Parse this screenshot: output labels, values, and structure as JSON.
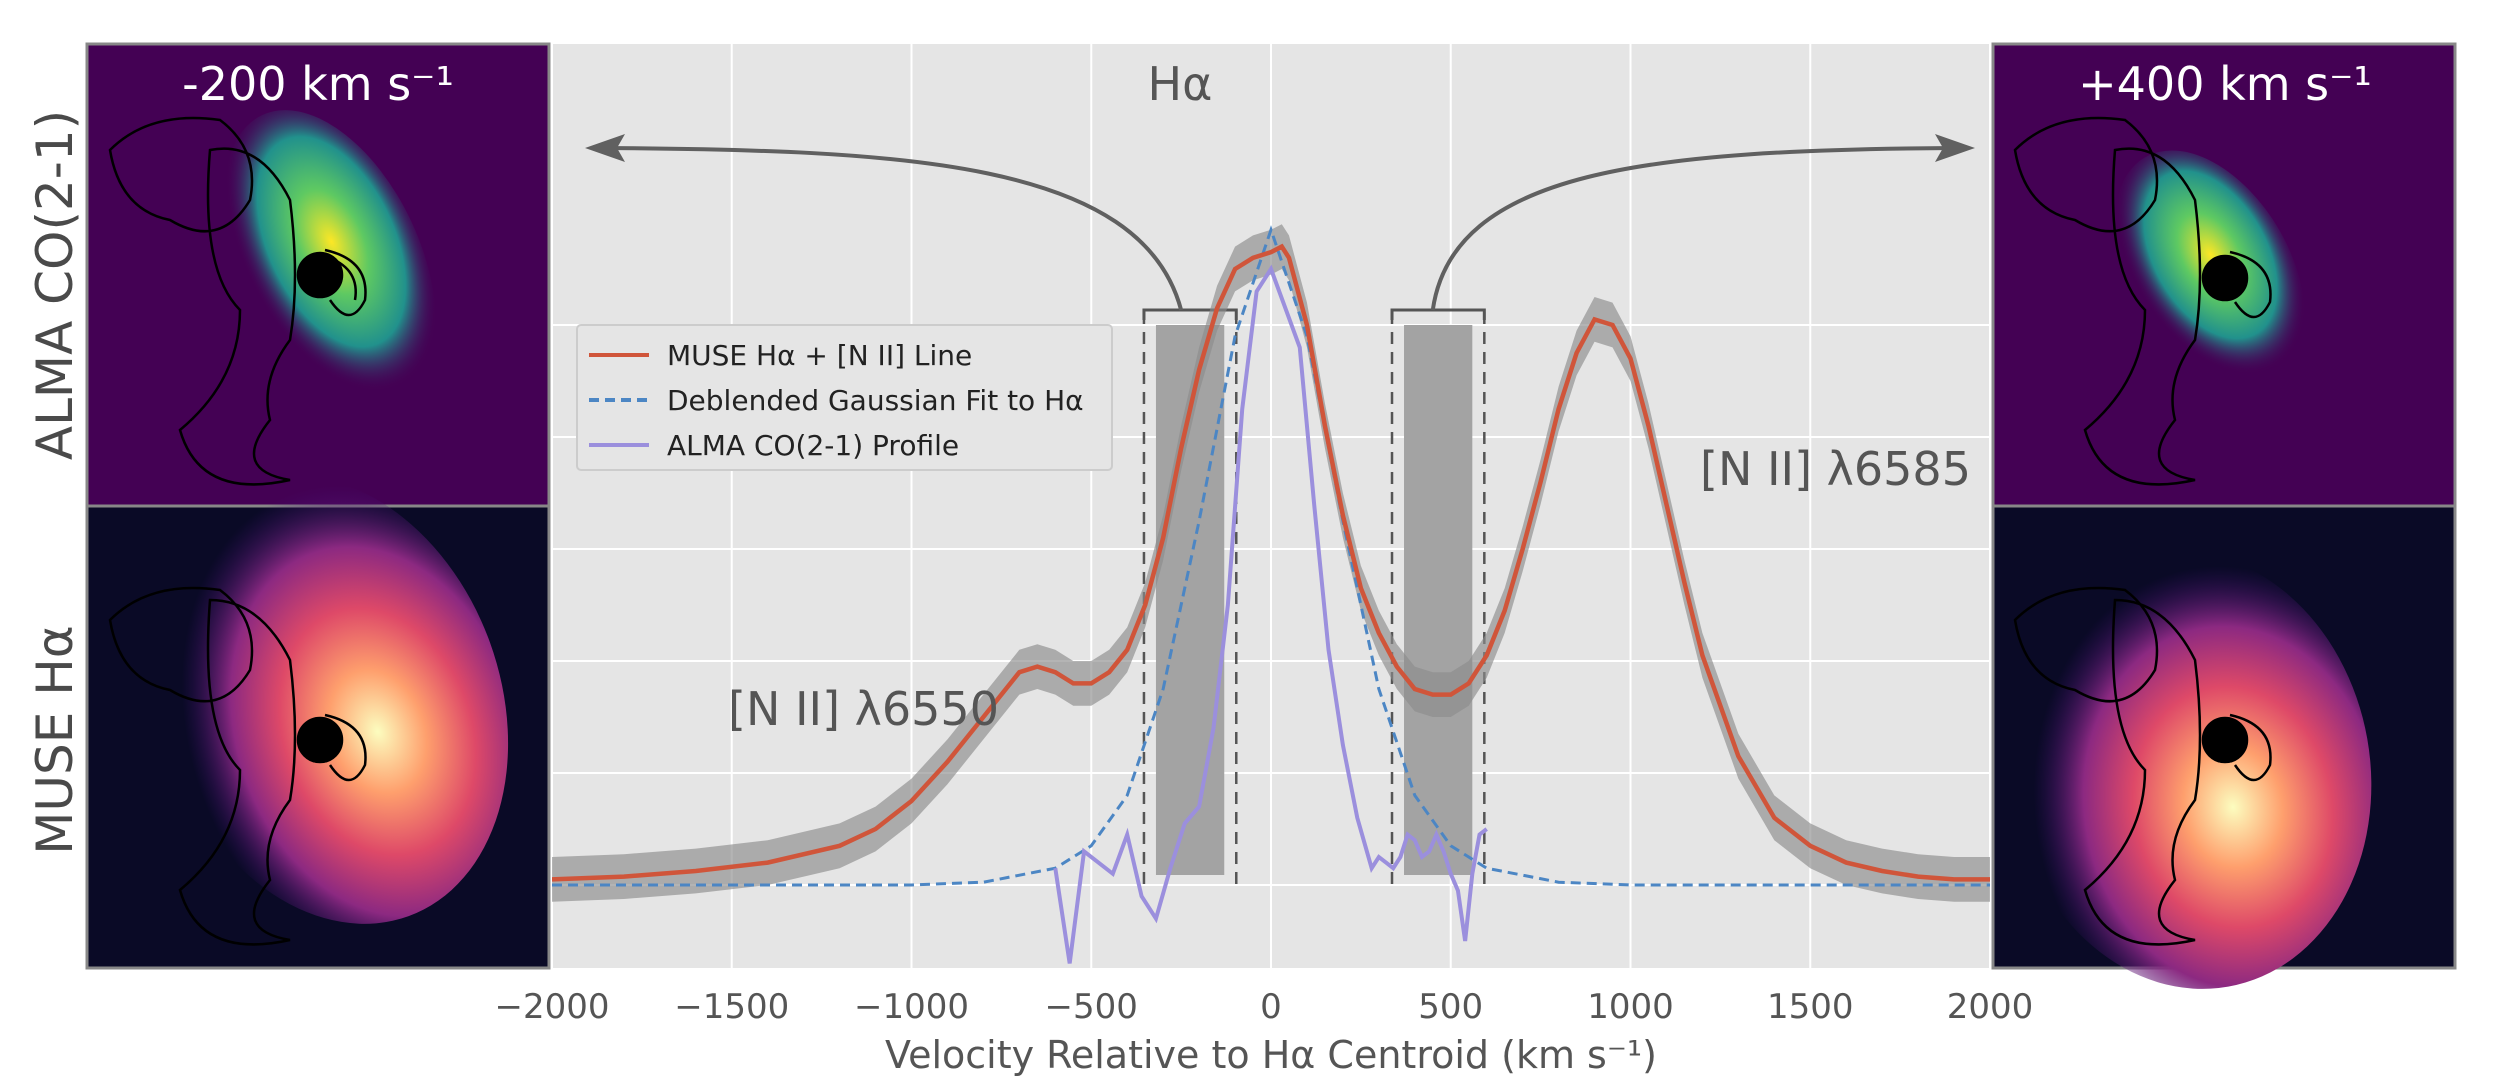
{
  "chart_data": {
    "type": "line",
    "xlabel": "Velocity Relative to Hα Centroid (km s⁻¹)",
    "xlim": [
      -2000,
      2000
    ],
    "xticks": [
      -2000,
      -1500,
      -1000,
      -500,
      0,
      500,
      1000,
      1500,
      2000
    ],
    "ylim": [
      0,
      1.15
    ],
    "grid": true,
    "legend": {
      "placement": "center-left",
      "entries": [
        {
          "label": "MUSE Hα + [N II] Line",
          "color": "#d0553a",
          "style": "solid"
        },
        {
          "label": "Deblended Gaussian Fit to Hα",
          "color": "#4c86c4",
          "style": "dashed"
        },
        {
          "label": "ALMA CO(2-1) Profile",
          "color": "#9b8fdd",
          "style": "solid"
        }
      ]
    },
    "series": [
      {
        "name": "MUSE Hα + [N II] Line",
        "x": [
          -2000,
          -1800,
          -1600,
          -1400,
          -1200,
          -1100,
          -1000,
          -900,
          -800,
          -700,
          -650,
          -600,
          -550,
          -500,
          -450,
          -400,
          -350,
          -300,
          -250,
          -200,
          -150,
          -100,
          -50,
          0,
          30,
          50,
          100,
          150,
          200,
          250,
          300,
          350,
          400,
          450,
          500,
          550,
          600,
          650,
          700,
          750,
          800,
          850,
          900,
          950,
          1000,
          1050,
          1100,
          1150,
          1200,
          1300,
          1400,
          1500,
          1600,
          1700,
          1800,
          1900,
          2000
        ],
        "y": [
          0.01,
          0.015,
          0.025,
          0.04,
          0.07,
          0.1,
          0.15,
          0.22,
          0.3,
          0.38,
          0.39,
          0.38,
          0.36,
          0.36,
          0.38,
          0.42,
          0.5,
          0.62,
          0.78,
          0.92,
          1.03,
          1.1,
          1.12,
          1.13,
          1.14,
          1.12,
          1.0,
          0.82,
          0.66,
          0.53,
          0.45,
          0.39,
          0.35,
          0.34,
          0.34,
          0.36,
          0.41,
          0.49,
          0.6,
          0.72,
          0.85,
          0.95,
          1.01,
          1.0,
          0.94,
          0.82,
          0.68,
          0.54,
          0.41,
          0.23,
          0.12,
          0.07,
          0.04,
          0.025,
          0.015,
          0.01,
          0.01
        ],
        "uncertainty": 0.04,
        "color": "#d0553a"
      },
      {
        "name": "Deblended Gaussian Fit to Hα",
        "x": [
          -2000,
          -1500,
          -1000,
          -800,
          -600,
          -500,
          -400,
          -300,
          -200,
          -100,
          0,
          100,
          200,
          300,
          400,
          500,
          600,
          800,
          1000,
          1500,
          2000
        ],
        "y": [
          0.0,
          0.0,
          0.0,
          0.005,
          0.03,
          0.07,
          0.16,
          0.35,
          0.65,
          0.98,
          1.17,
          0.98,
          0.65,
          0.35,
          0.16,
          0.07,
          0.03,
          0.005,
          0.0,
          0.0,
          0.0
        ],
        "color": "#4c86c4"
      },
      {
        "name": "ALMA CO(2-1) Profile",
        "x": [
          -600,
          -560,
          -520,
          -480,
          -440,
          -400,
          -360,
          -320,
          -280,
          -240,
          -200,
          -160,
          -120,
          -80,
          -40,
          0,
          40,
          80,
          120,
          160,
          200,
          240,
          280,
          300,
          320,
          340,
          360,
          380,
          400,
          420,
          440,
          460,
          480,
          500,
          520,
          540,
          560,
          580,
          600
        ],
        "y": [
          0.03,
          -0.14,
          0.06,
          0.04,
          0.02,
          0.09,
          -0.02,
          -0.06,
          0.03,
          0.11,
          0.14,
          0.28,
          0.5,
          0.85,
          1.06,
          1.1,
          1.03,
          0.96,
          0.68,
          0.42,
          0.25,
          0.12,
          0.03,
          0.05,
          0.04,
          0.03,
          0.05,
          0.09,
          0.08,
          0.05,
          0.06,
          0.09,
          0.06,
          0.02,
          -0.01,
          -0.1,
          0.02,
          0.09,
          0.1
        ],
        "color": "#9b8fdd"
      }
    ],
    "shaded_regions": [
      {
        "x": [
          -320,
          -130
        ],
        "label": "-200 km s⁻¹ channel"
      },
      {
        "x": [
          370,
          560
        ],
        "label": "+400 km s⁻¹ channel"
      }
    ],
    "annotations": {
      "halpha": "Hα",
      "nii_6550": "[N II] λ6550",
      "nii_6585": "[N II] λ6585"
    },
    "side_labels": {
      "left_top": "ALMA CO(2-1)",
      "left_bottom": "MUSE Hα"
    },
    "panel_titles": {
      "left": "-200 km s⁻¹",
      "right": "+400 km s⁻¹"
    }
  }
}
